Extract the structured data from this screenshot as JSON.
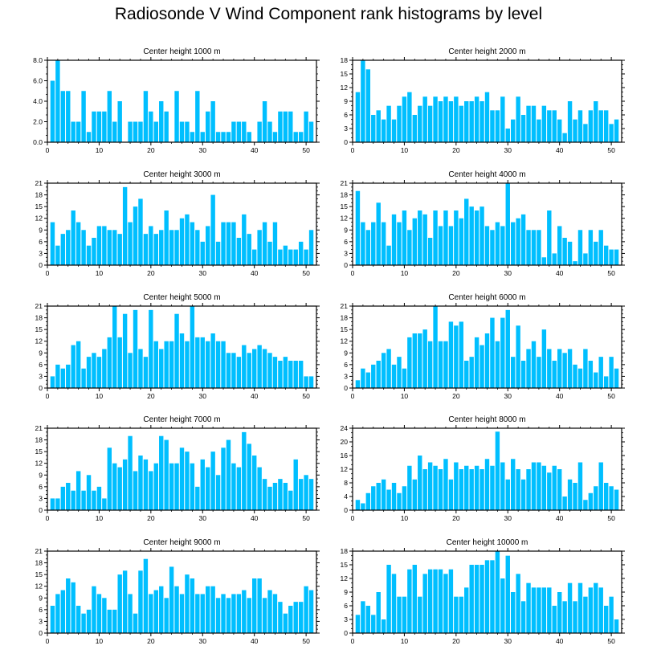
{
  "title": "Radiosonde V Wind Component rank histograms by level",
  "colors": {
    "bar": "#00bfff",
    "frame": "#000000",
    "background": "#ffffff"
  },
  "chart_data": [
    {
      "type": "bar",
      "title": "Center height 1000 m",
      "xlim": [
        0,
        52
      ],
      "ylim": [
        0,
        8
      ],
      "xticks": [
        0,
        10,
        20,
        30,
        40,
        50
      ],
      "xtick_labels": [
        "0",
        "10",
        "20",
        "30",
        "40",
        "50"
      ],
      "yticks": [
        0,
        2,
        4,
        6,
        8
      ],
      "ytick_labels": [
        "0.0",
        "2.0",
        "4.0",
        "6.0",
        "8.0"
      ],
      "x": [
        1,
        2,
        3,
        4,
        5,
        6,
        7,
        8,
        9,
        10,
        11,
        12,
        13,
        14,
        15,
        16,
        17,
        18,
        19,
        20,
        21,
        22,
        23,
        24,
        25,
        26,
        27,
        28,
        29,
        30,
        31,
        32,
        33,
        34,
        35,
        36,
        37,
        38,
        39,
        40,
        41,
        42,
        43,
        44,
        45,
        46,
        47,
        48,
        49,
        50,
        51
      ],
      "values": [
        6,
        8,
        5,
        5,
        2,
        2,
        5,
        1,
        3,
        3,
        3,
        5,
        2,
        4,
        0,
        2,
        2,
        2,
        5,
        3,
        2,
        4,
        3,
        0,
        5,
        2,
        2,
        1,
        5,
        1,
        3,
        4,
        1,
        1,
        1,
        2,
        2,
        2,
        1,
        0,
        2,
        4,
        2,
        1,
        3,
        3,
        3,
        1,
        1,
        3,
        2
      ]
    },
    {
      "type": "bar",
      "title": "Center height 2000 m",
      "xlim": [
        0,
        52
      ],
      "ylim": [
        0,
        18
      ],
      "xticks": [
        0,
        10,
        20,
        30,
        40,
        50
      ],
      "xtick_labels": [
        "0",
        "10",
        "20",
        "30",
        "40",
        "50"
      ],
      "yticks": [
        0,
        3,
        6,
        9,
        12,
        15,
        18
      ],
      "ytick_labels": [
        "0",
        "3",
        "6",
        "9",
        "12",
        "15",
        "18"
      ],
      "x": [
        1,
        2,
        3,
        4,
        5,
        6,
        7,
        8,
        9,
        10,
        11,
        12,
        13,
        14,
        15,
        16,
        17,
        18,
        19,
        20,
        21,
        22,
        23,
        24,
        25,
        26,
        27,
        28,
        29,
        30,
        31,
        32,
        33,
        34,
        35,
        36,
        37,
        38,
        39,
        40,
        41,
        42,
        43,
        44,
        45,
        46,
        47,
        48,
        49,
        50,
        51
      ],
      "values": [
        11,
        18,
        16,
        6,
        7,
        5,
        8,
        5,
        8,
        10,
        11,
        6,
        8,
        10,
        8,
        10,
        9,
        10,
        9,
        10,
        8,
        9,
        9,
        10,
        9,
        11,
        7,
        7,
        10,
        3,
        5,
        10,
        6,
        8,
        8,
        5,
        8,
        7,
        7,
        5,
        2,
        9,
        5,
        7,
        4,
        7,
        9,
        7,
        7,
        4,
        5
      ]
    },
    {
      "type": "bar",
      "title": "Center height 3000 m",
      "xlim": [
        0,
        52
      ],
      "ylim": [
        0,
        21
      ],
      "xticks": [
        0,
        10,
        20,
        30,
        40,
        50
      ],
      "xtick_labels": [
        "0",
        "10",
        "20",
        "30",
        "40",
        "50"
      ],
      "yticks": [
        0,
        3,
        6,
        9,
        12,
        15,
        18,
        21
      ],
      "ytick_labels": [
        "0",
        "3",
        "6",
        "9",
        "12",
        "15",
        "18",
        "21"
      ],
      "x": [
        1,
        2,
        3,
        4,
        5,
        6,
        7,
        8,
        9,
        10,
        11,
        12,
        13,
        14,
        15,
        16,
        17,
        18,
        19,
        20,
        21,
        22,
        23,
        24,
        25,
        26,
        27,
        28,
        29,
        30,
        31,
        32,
        33,
        34,
        35,
        36,
        37,
        38,
        39,
        40,
        41,
        42,
        43,
        44,
        45,
        46,
        47,
        48,
        49,
        50,
        51
      ],
      "values": [
        11,
        5,
        8,
        9,
        14,
        11,
        9,
        5,
        7,
        10,
        10,
        9,
        9,
        8,
        20,
        11,
        15,
        17,
        8,
        10,
        8,
        9,
        14,
        9,
        9,
        12,
        13,
        11,
        9,
        6,
        10,
        18,
        6,
        11,
        11,
        11,
        7,
        13,
        8,
        4,
        9,
        11,
        6,
        11,
        4,
        5,
        4,
        4,
        6,
        4,
        9
      ]
    },
    {
      "type": "bar",
      "title": "Center height 4000 m",
      "xlim": [
        0,
        52
      ],
      "ylim": [
        0,
        21
      ],
      "xticks": [
        0,
        10,
        20,
        30,
        40,
        50
      ],
      "xtick_labels": [
        "0",
        "10",
        "20",
        "30",
        "40",
        "50"
      ],
      "yticks": [
        0,
        3,
        6,
        9,
        12,
        15,
        18,
        21
      ],
      "ytick_labels": [
        "0",
        "3",
        "6",
        "9",
        "12",
        "15",
        "18",
        "21"
      ],
      "x": [
        1,
        2,
        3,
        4,
        5,
        6,
        7,
        8,
        9,
        10,
        11,
        12,
        13,
        14,
        15,
        16,
        17,
        18,
        19,
        20,
        21,
        22,
        23,
        24,
        25,
        26,
        27,
        28,
        29,
        30,
        31,
        32,
        33,
        34,
        35,
        36,
        37,
        38,
        39,
        40,
        41,
        42,
        43,
        44,
        45,
        46,
        47,
        48,
        49,
        50,
        51
      ],
      "values": [
        19,
        11,
        9,
        11,
        16,
        11,
        5,
        13,
        11,
        14,
        9,
        12,
        14,
        13,
        7,
        14,
        10,
        14,
        10,
        14,
        12,
        17,
        15,
        14,
        15,
        10,
        9,
        11,
        10,
        21,
        11,
        12,
        13,
        9,
        9,
        9,
        2,
        14,
        3,
        10,
        7,
        6,
        1,
        9,
        3,
        9,
        6,
        9,
        5,
        4,
        4
      ]
    },
    {
      "type": "bar",
      "title": "Center height 5000 m",
      "xlim": [
        0,
        52
      ],
      "ylim": [
        0,
        21
      ],
      "xticks": [
        0,
        10,
        20,
        30,
        40,
        50
      ],
      "xtick_labels": [
        "0",
        "10",
        "20",
        "30",
        "40",
        "50"
      ],
      "yticks": [
        0,
        3,
        6,
        9,
        12,
        15,
        18,
        21
      ],
      "ytick_labels": [
        "0",
        "3",
        "6",
        "9",
        "12",
        "15",
        "18",
        "21"
      ],
      "x": [
        1,
        2,
        3,
        4,
        5,
        6,
        7,
        8,
        9,
        10,
        11,
        12,
        13,
        14,
        15,
        16,
        17,
        18,
        19,
        20,
        21,
        22,
        23,
        24,
        25,
        26,
        27,
        28,
        29,
        30,
        31,
        32,
        33,
        34,
        35,
        36,
        37,
        38,
        39,
        40,
        41,
        42,
        43,
        44,
        45,
        46,
        47,
        48,
        49,
        50,
        51
      ],
      "values": [
        3,
        6,
        5,
        6,
        11,
        12,
        5,
        8,
        9,
        8,
        10,
        13,
        21,
        13,
        19,
        9,
        20,
        10,
        8,
        20,
        12,
        10,
        12,
        12,
        19,
        14,
        12,
        21,
        13,
        13,
        12,
        14,
        12,
        12,
        9,
        9,
        8,
        11,
        9,
        10,
        11,
        10,
        9,
        8,
        7,
        8,
        7,
        7,
        7,
        3,
        3
      ]
    },
    {
      "type": "bar",
      "title": "Center height 6000 m",
      "xlim": [
        0,
        52
      ],
      "ylim": [
        0,
        21
      ],
      "xticks": [
        0,
        10,
        20,
        30,
        40,
        50
      ],
      "xtick_labels": [
        "0",
        "10",
        "20",
        "30",
        "40",
        "50"
      ],
      "yticks": [
        0,
        3,
        6,
        9,
        12,
        15,
        18,
        21
      ],
      "ytick_labels": [
        "0",
        "3",
        "6",
        "9",
        "12",
        "15",
        "18",
        "21"
      ],
      "x": [
        1,
        2,
        3,
        4,
        5,
        6,
        7,
        8,
        9,
        10,
        11,
        12,
        13,
        14,
        15,
        16,
        17,
        18,
        19,
        20,
        21,
        22,
        23,
        24,
        25,
        26,
        27,
        28,
        29,
        30,
        31,
        32,
        33,
        34,
        35,
        36,
        37,
        38,
        39,
        40,
        41,
        42,
        43,
        44,
        45,
        46,
        47,
        48,
        49,
        50,
        51
      ],
      "values": [
        2,
        5,
        4,
        6,
        7,
        9,
        10,
        6,
        8,
        5,
        13,
        14,
        14,
        15,
        12,
        21,
        12,
        12,
        17,
        16,
        17,
        7,
        8,
        13,
        11,
        14,
        18,
        12,
        18,
        20,
        8,
        16,
        7,
        10,
        12,
        8,
        15,
        10,
        7,
        10,
        9,
        10,
        6,
        5,
        10,
        7,
        4,
        8,
        3,
        8,
        5
      ]
    },
    {
      "type": "bar",
      "title": "Center height 7000 m",
      "xlim": [
        0,
        52
      ],
      "ylim": [
        0,
        21
      ],
      "xticks": [
        0,
        10,
        20,
        30,
        40,
        50
      ],
      "xtick_labels": [
        "0",
        "10",
        "20",
        "30",
        "40",
        "50"
      ],
      "yticks": [
        0,
        3,
        6,
        9,
        12,
        15,
        18,
        21
      ],
      "ytick_labels": [
        "0",
        "3",
        "6",
        "9",
        "12",
        "15",
        "18",
        "21"
      ],
      "x": [
        1,
        2,
        3,
        4,
        5,
        6,
        7,
        8,
        9,
        10,
        11,
        12,
        13,
        14,
        15,
        16,
        17,
        18,
        19,
        20,
        21,
        22,
        23,
        24,
        25,
        26,
        27,
        28,
        29,
        30,
        31,
        32,
        33,
        34,
        35,
        36,
        37,
        38,
        39,
        40,
        41,
        42,
        43,
        44,
        45,
        46,
        47,
        48,
        49,
        50,
        51
      ],
      "values": [
        3,
        3,
        6,
        7,
        5,
        10,
        5,
        9,
        5,
        6,
        3,
        16,
        12,
        11,
        13,
        19,
        10,
        14,
        13,
        10,
        12,
        19,
        18,
        12,
        12,
        16,
        15,
        12,
        6,
        13,
        11,
        15,
        9,
        16,
        18,
        12,
        11,
        20,
        17,
        14,
        11,
        8,
        6,
        7,
        8,
        7,
        5,
        13,
        8,
        9,
        8
      ]
    },
    {
      "type": "bar",
      "title": "Center height 8000 m",
      "xlim": [
        0,
        52
      ],
      "ylim": [
        0,
        24
      ],
      "xticks": [
        0,
        10,
        20,
        30,
        40,
        50
      ],
      "xtick_labels": [
        "0",
        "10",
        "20",
        "30",
        "40",
        "50"
      ],
      "yticks": [
        0,
        4,
        8,
        12,
        16,
        20,
        24
      ],
      "ytick_labels": [
        "0",
        "4",
        "8",
        "12",
        "16",
        "20",
        "24"
      ],
      "x": [
        1,
        2,
        3,
        4,
        5,
        6,
        7,
        8,
        9,
        10,
        11,
        12,
        13,
        14,
        15,
        16,
        17,
        18,
        19,
        20,
        21,
        22,
        23,
        24,
        25,
        26,
        27,
        28,
        29,
        30,
        31,
        32,
        33,
        34,
        35,
        36,
        37,
        38,
        39,
        40,
        41,
        42,
        43,
        44,
        45,
        46,
        47,
        48,
        49,
        50,
        51
      ],
      "values": [
        3,
        2,
        5,
        7,
        8,
        9,
        6,
        8,
        5,
        7,
        13,
        9,
        16,
        12,
        14,
        13,
        12,
        15,
        9,
        14,
        12,
        13,
        12,
        13,
        12,
        15,
        13,
        23,
        14,
        9,
        15,
        12,
        9,
        12,
        14,
        14,
        13,
        11,
        13,
        12,
        4,
        9,
        8,
        14,
        3,
        5,
        7,
        14,
        8,
        7,
        6
      ]
    },
    {
      "type": "bar",
      "title": "Center height 9000 m",
      "xlim": [
        0,
        52
      ],
      "ylim": [
        0,
        21
      ],
      "xticks": [
        0,
        10,
        20,
        30,
        40,
        50
      ],
      "xtick_labels": [
        "0",
        "10",
        "20",
        "30",
        "40",
        "50"
      ],
      "yticks": [
        0,
        3,
        6,
        9,
        12,
        15,
        18,
        21
      ],
      "ytick_labels": [
        "0",
        "3",
        "6",
        "9",
        "12",
        "15",
        "18",
        "21"
      ],
      "x": [
        1,
        2,
        3,
        4,
        5,
        6,
        7,
        8,
        9,
        10,
        11,
        12,
        13,
        14,
        15,
        16,
        17,
        18,
        19,
        20,
        21,
        22,
        23,
        24,
        25,
        26,
        27,
        28,
        29,
        30,
        31,
        32,
        33,
        34,
        35,
        36,
        37,
        38,
        39,
        40,
        41,
        42,
        43,
        44,
        45,
        46,
        47,
        48,
        49,
        50,
        51
      ],
      "values": [
        7,
        10,
        11,
        14,
        13,
        7,
        5,
        6,
        12,
        10,
        9,
        6,
        6,
        15,
        16,
        10,
        5,
        16,
        19,
        10,
        11,
        12,
        9,
        17,
        12,
        10,
        15,
        14,
        10,
        10,
        12,
        12,
        9,
        10,
        9,
        10,
        10,
        11,
        9,
        14,
        14,
        9,
        11,
        10,
        8,
        5,
        7,
        8,
        8,
        12,
        11
      ]
    },
    {
      "type": "bar",
      "title": "Center height 10000 m",
      "xlim": [
        0,
        52
      ],
      "ylim": [
        0,
        18
      ],
      "xticks": [
        0,
        10,
        20,
        30,
        40,
        50
      ],
      "xtick_labels": [
        "0",
        "10",
        "20",
        "30",
        "40",
        "50"
      ],
      "yticks": [
        0,
        3,
        6,
        9,
        12,
        15,
        18
      ],
      "ytick_labels": [
        "0",
        "3",
        "6",
        "9",
        "12",
        "15",
        "18"
      ],
      "x": [
        1,
        2,
        3,
        4,
        5,
        6,
        7,
        8,
        9,
        10,
        11,
        12,
        13,
        14,
        15,
        16,
        17,
        18,
        19,
        20,
        21,
        22,
        23,
        24,
        25,
        26,
        27,
        28,
        29,
        30,
        31,
        32,
        33,
        34,
        35,
        36,
        37,
        38,
        39,
        40,
        41,
        42,
        43,
        44,
        45,
        46,
        47,
        48,
        49,
        50,
        51
      ],
      "values": [
        4,
        7,
        6,
        4,
        9,
        3,
        15,
        13,
        8,
        8,
        14,
        15,
        8,
        13,
        14,
        14,
        14,
        13,
        14,
        8,
        8,
        10,
        15,
        15,
        15,
        16,
        16,
        18,
        12,
        17,
        9,
        13,
        7,
        11,
        10,
        10,
        10,
        10,
        6,
        9,
        7,
        11,
        7,
        11,
        8,
        10,
        11,
        10,
        6,
        8,
        3
      ]
    }
  ]
}
